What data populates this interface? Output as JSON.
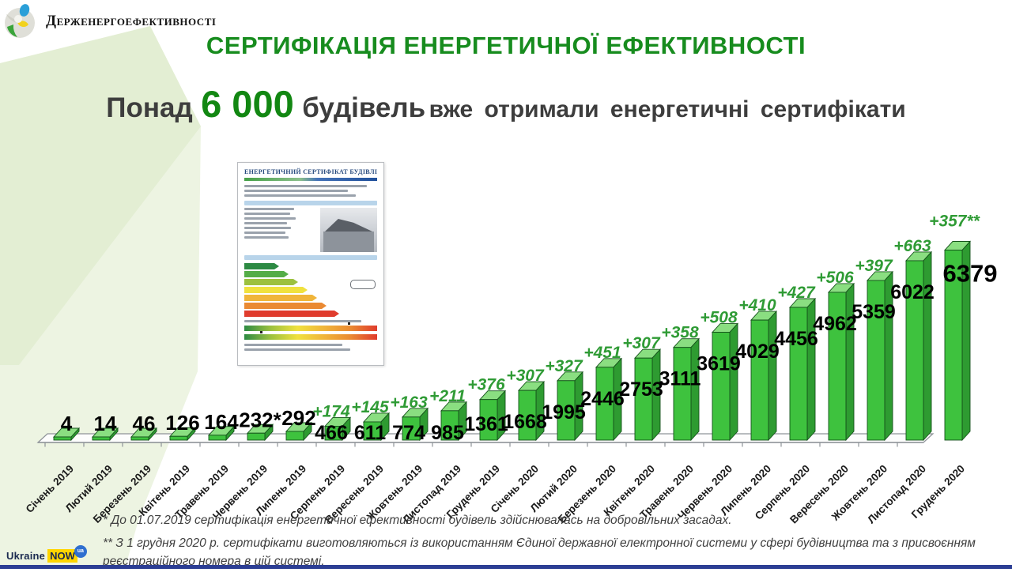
{
  "header": {
    "logo_text": "Держенергоефективності",
    "title": "СЕРТИФІКАЦІЯ ЕНЕРГЕТИЧНОЇ ЕФЕКТИВНОСТІ"
  },
  "subtitle": {
    "prefix": "Понад",
    "highlight": "6 000",
    "middle": "будівель",
    "suffix": "вже отримали енергетичні сертифікати"
  },
  "certificate": {
    "title": "ЕНЕРГЕТИЧНИЙ СЕРТИФІКАТ БУДІВЛІ"
  },
  "chart_data": {
    "type": "bar",
    "style": "3d-column",
    "title": "",
    "xlabel": "",
    "ylabel": "",
    "ylim": [
      0,
      6800
    ],
    "grid": false,
    "legend": false,
    "categories": [
      "Січень 2019",
      "Лютий 2019",
      "Березень 2019",
      "Квітень 2019",
      "Травень 2019",
      "Червень 2019",
      "Липень 2019",
      "Серпень 2019",
      "Вересень 2019",
      "Жовтень 2019",
      "Листопад 2019",
      "Грудень 2019",
      "Січень 2020",
      "Лютий 2020",
      "Березень 2020",
      "Квітень 2020",
      "Травень 2020",
      "Червень 2020",
      "Липень 2020",
      "Серпень 2020",
      "Вересень 2020",
      "Жовтень 2020",
      "Листопад 2020",
      "Грудень 2020"
    ],
    "values": [
      4,
      14,
      46,
      126,
      164,
      232,
      292,
      466,
      611,
      774,
      985,
      1361,
      1668,
      1995,
      2446,
      2753,
      3111,
      3619,
      4029,
      4456,
      4962,
      5359,
      6022,
      6379
    ],
    "value_labels": [
      "4",
      "14",
      "46",
      "126",
      "164",
      "232*",
      "292",
      "466",
      "611",
      "774",
      "985",
      "1361",
      "1668",
      "1995",
      "2446",
      "2753",
      "3111",
      "3619",
      "4029",
      "4456",
      "4962",
      "5359",
      "6022",
      "6379"
    ],
    "delta_labels": [
      null,
      null,
      null,
      null,
      null,
      null,
      null,
      "+174",
      "+145",
      "+163",
      "+211",
      "+376",
      "+307",
      "+327",
      "+451",
      "+307",
      "+358",
      "+508",
      "+410",
      "+427",
      "+506",
      "+397",
      "+663",
      "+357**"
    ]
  },
  "footnotes": {
    "note1": "* До 01.07.2019 сертифікація енергетичної ефективності будівель здійснювалась на добровільних засадах.",
    "note2": "** З 1 грудня 2020 р. сертифікати виготовляються із використанням Єдиної державної електронної системи у сфері будівництва та з присвоєнням реєстраційного номера в цій системі."
  },
  "footer": {
    "ukraine": "Ukraine",
    "now": "NOW",
    "ua": "ua"
  },
  "colors": {
    "title_green": "#178c1e",
    "highlight_green": "#128712",
    "bar_front": "#3ec23e",
    "bar_top": "#8ade81",
    "bar_side": "#2e9b31",
    "bar_outline": "#14521a",
    "delta_label": "#2f9b35",
    "value_label": "#000000",
    "axis_gray": "#8f9499",
    "background_band": "#e3eed3",
    "bottom_bar_blue": "#2c3e94",
    "now_yellow": "#ffd500",
    "ua_badge_blue": "#2f6fd0"
  }
}
